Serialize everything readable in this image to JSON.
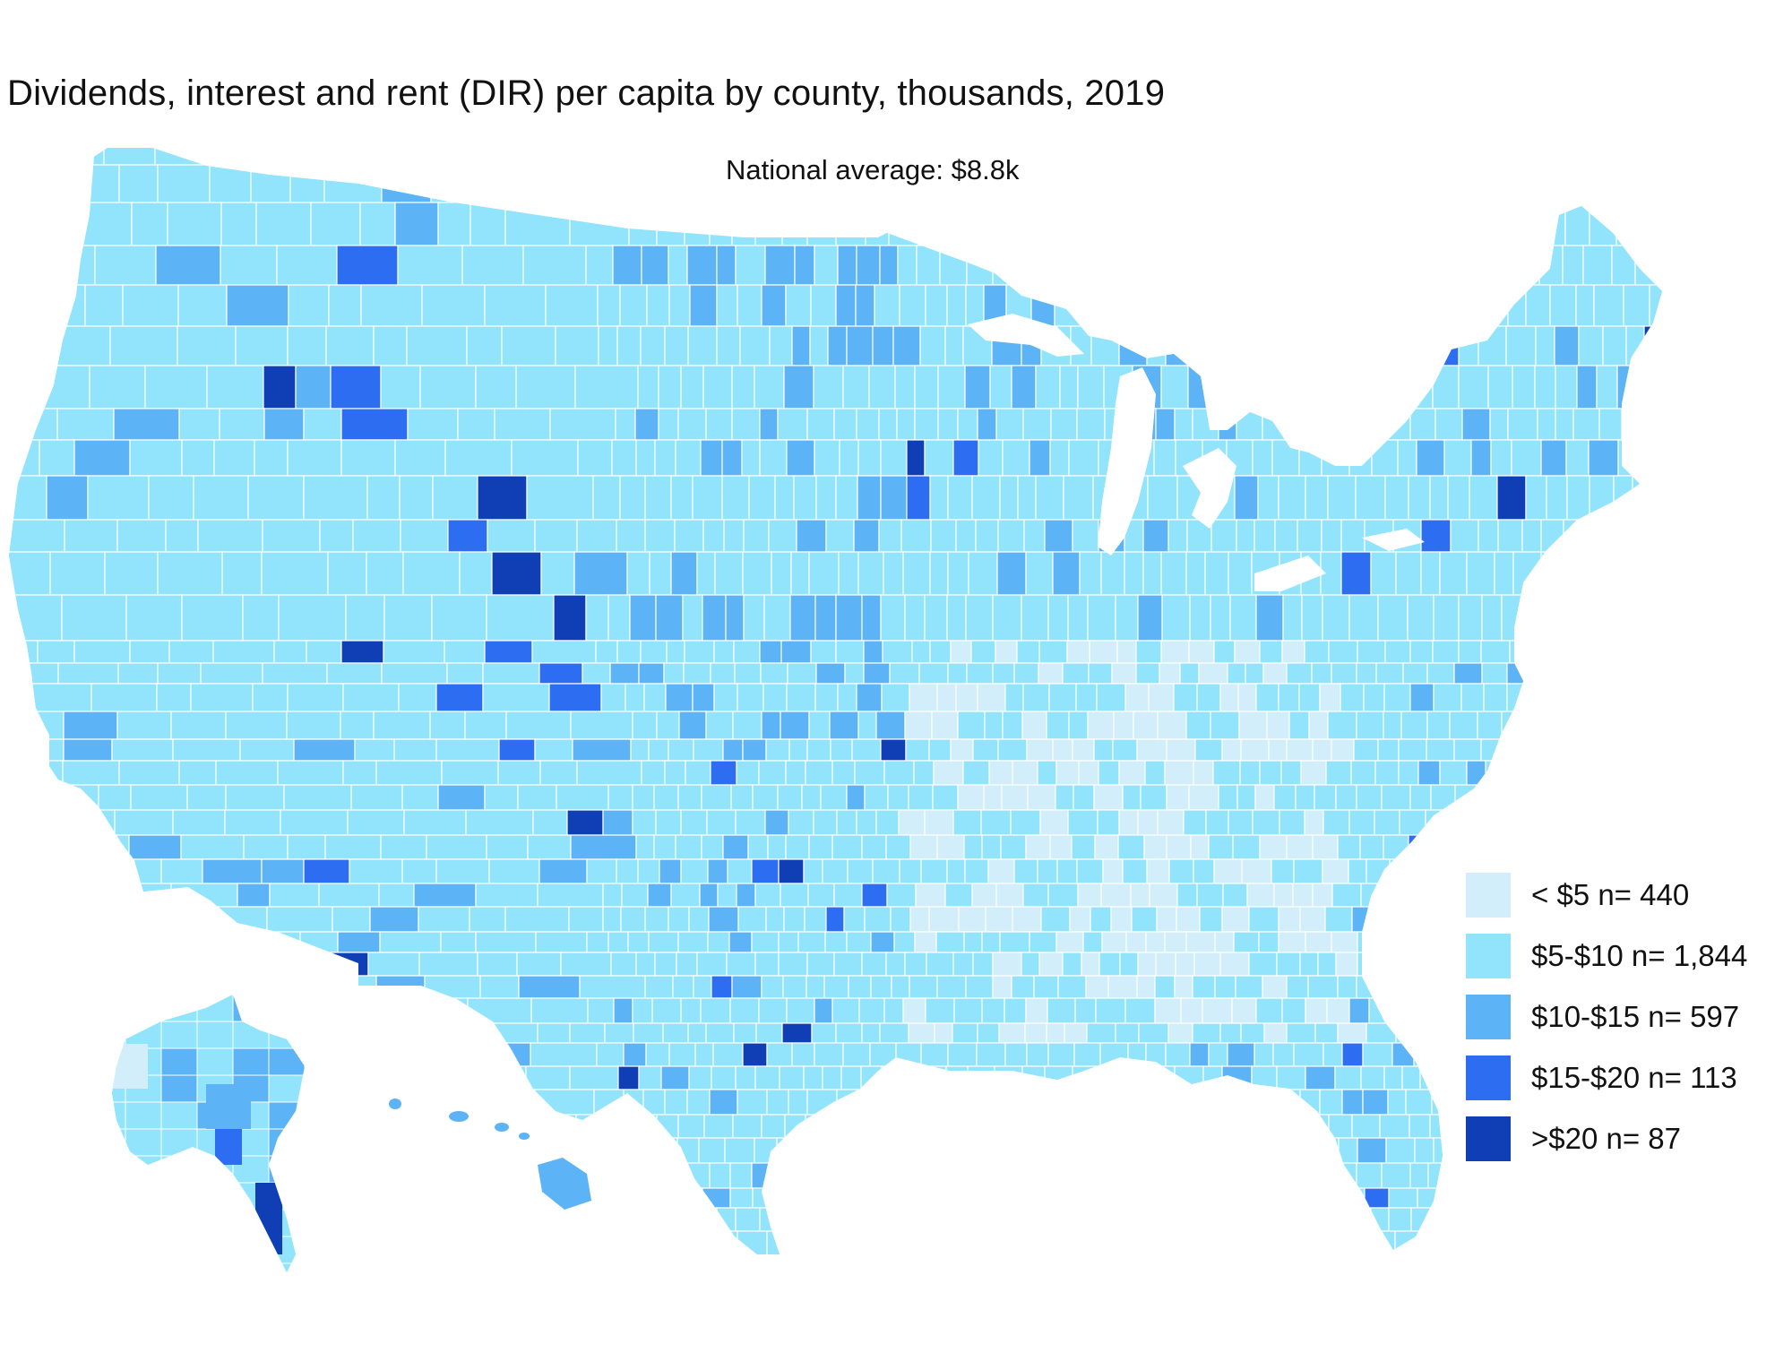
{
  "title": "Dividends, interest and rent (DIR) per capita by county, thousands, 2019",
  "subtitle": "National average: $8.8k",
  "colors": {
    "lt5": "#d3eefb",
    "5to10": "#91e4fb",
    "10to15": "#5cb3f5",
    "15to20": "#2c6df2",
    "gt20": "#103eb4",
    "border": "#ffffff"
  },
  "legend": [
    {
      "label": "< $5 n= 440",
      "color_key": "lt5"
    },
    {
      "label": "$5-$10 n= 1,844",
      "color_key": "5to10"
    },
    {
      "label": "$10-$15 n= 597",
      "color_key": "10to15"
    },
    {
      "label": "$15-$20 n= 113",
      "color_key": "15to20"
    },
    {
      "label": ">$20 n= 87",
      "color_key": "gt20"
    }
  ],
  "map": {
    "regions": [
      "contiguous-us",
      "alaska",
      "hawaii"
    ]
  }
}
